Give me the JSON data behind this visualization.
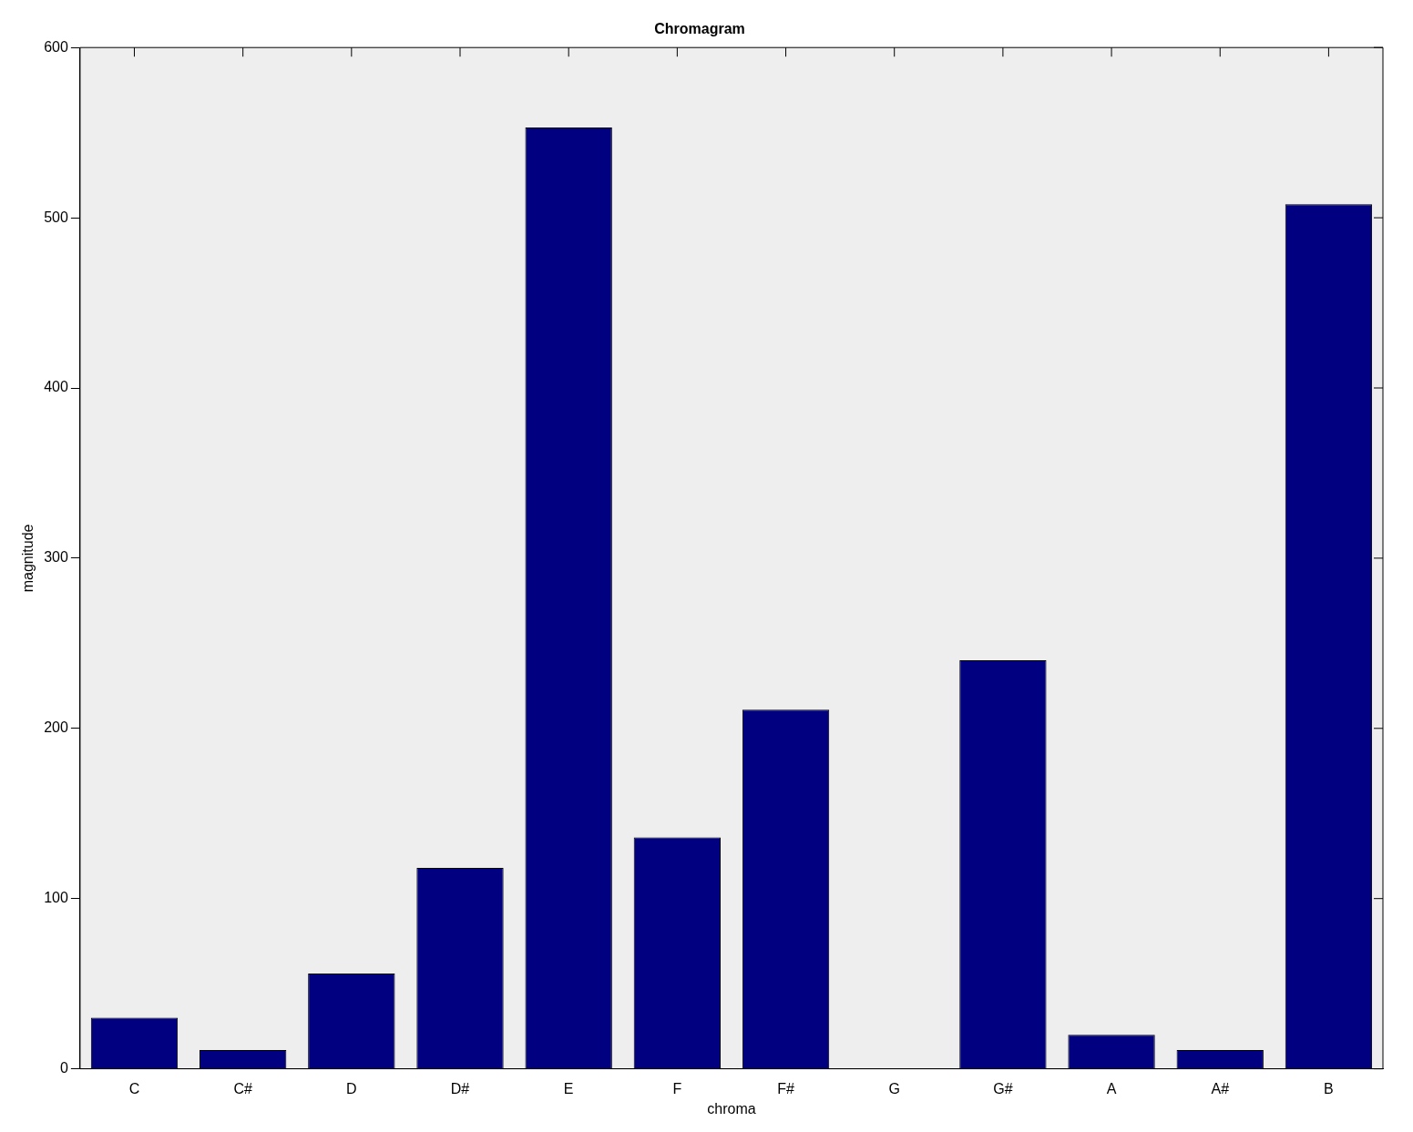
{
  "chart_data": {
    "type": "bar",
    "title": "Chromagram",
    "xlabel": "chroma",
    "ylabel": "magnitude",
    "categories": [
      "C",
      "C#",
      "D",
      "D#",
      "E",
      "F",
      "F#",
      "G",
      "G#",
      "A",
      "A#",
      "B"
    ],
    "values": [
      30,
      11,
      56,
      118,
      553,
      136,
      211,
      0,
      240,
      20,
      11,
      508
    ],
    "color": "#000080",
    "ylim": [
      0,
      600
    ],
    "yticks": [
      0,
      100,
      200,
      300,
      400,
      500,
      600
    ],
    "grid": false,
    "legend": false
  }
}
